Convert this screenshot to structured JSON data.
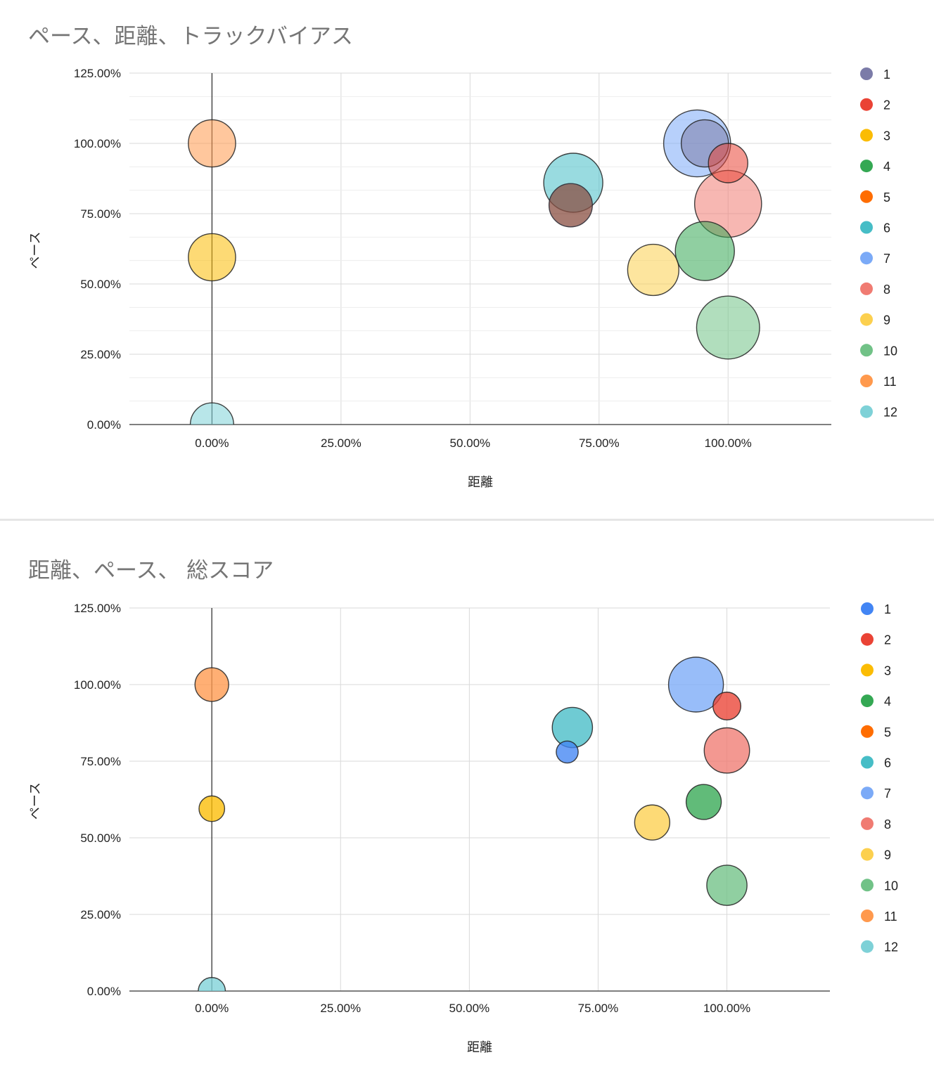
{
  "chart_data": [
    {
      "type": "bubble",
      "title": "ペース、距離、トラックバイアス",
      "xlabel": "距離",
      "ylabel": "ペース",
      "xlim": [
        -0.16,
        1.2
      ],
      "ylim": [
        0,
        1.25
      ],
      "x_ticks": [
        "0.00%",
        "25.00%",
        "50.00%",
        "75.00%",
        "100.00%"
      ],
      "y_ticks": [
        "0.00%",
        "25.00%",
        "50.00%",
        "75.00%",
        "100.00%",
        "125.00%"
      ],
      "grid": true,
      "minor_grid": true,
      "legend_position": "right",
      "bubble_opacity": 0.55,
      "series": [
        {
          "name": "1",
          "color": "#7b7ba8",
          "x": 0.955,
          "y": 1.0,
          "size": 0.6
        },
        {
          "name": "2",
          "color": "#ea4335",
          "x": 1.0,
          "y": 0.93,
          "size": 0.5
        },
        {
          "name": "3",
          "color": "#fbbc04",
          "x": 0.0,
          "y": 0.595,
          "size": 0.6
        },
        {
          "name": "4",
          "color": "#34a853",
          "x": 0.955,
          "y": 0.617,
          "size": 0.75
        },
        {
          "name": "5",
          "color": "#ff6d01",
          "x": 0.695,
          "y": 0.78,
          "size": 0.55
        },
        {
          "name": "6",
          "color": "#46bdc6",
          "x": 0.7,
          "y": 0.86,
          "size": 0.75
        },
        {
          "name": "7",
          "color": "#7baaf7",
          "x": 0.94,
          "y": 1.0,
          "size": 0.85
        },
        {
          "name": "8",
          "color": "#f07b72",
          "x": 1.0,
          "y": 0.785,
          "size": 0.85
        },
        {
          "name": "9",
          "color": "#fcd04f",
          "x": 0.855,
          "y": 0.55,
          "size": 0.65
        },
        {
          "name": "10",
          "color": "#71c287",
          "x": 1.0,
          "y": 0.345,
          "size": 0.8
        },
        {
          "name": "11",
          "color": "#ff994d",
          "x": 0.0,
          "y": 1.0,
          "size": 0.6
        },
        {
          "name": "12",
          "color": "#7ed1d7",
          "x": 0.0,
          "y": 0.0,
          "size": 0.55
        }
      ],
      "dark_overlay": {
        "x": 0.695,
        "y": 0.78,
        "color": "#3b3b6e"
      }
    },
    {
      "type": "bubble",
      "title": "距離、ペース、 総スコア",
      "xlabel": "距離",
      "ylabel": "ペース",
      "xlim": [
        -0.16,
        1.2
      ],
      "ylim": [
        0,
        1.25
      ],
      "x_ticks": [
        "0.00%",
        "25.00%",
        "50.00%",
        "75.00%",
        "100.00%"
      ],
      "y_ticks": [
        "0.00%",
        "25.00%",
        "50.00%",
        "75.00%",
        "100.00%",
        "125.00%"
      ],
      "grid": true,
      "minor_grid": false,
      "legend_position": "right",
      "bubble_opacity": 0.78,
      "series": [
        {
          "name": "1",
          "color": "#4285f4",
          "x": 0.69,
          "y": 0.78,
          "size": 0.3
        },
        {
          "name": "2",
          "color": "#ea4335",
          "x": 1.0,
          "y": 0.93,
          "size": 0.38
        },
        {
          "name": "3",
          "color": "#fbbc04",
          "x": 0.0,
          "y": 0.595,
          "size": 0.35
        },
        {
          "name": "4",
          "color": "#34a853",
          "x": 0.955,
          "y": 0.617,
          "size": 0.48
        },
        {
          "name": "5",
          "color": "#ff6d01",
          "x": 0.69,
          "y": 0.78,
          "size": 0.0
        },
        {
          "name": "6",
          "color": "#46bdc6",
          "x": 0.7,
          "y": 0.86,
          "size": 0.55
        },
        {
          "name": "7",
          "color": "#7baaf7",
          "x": 0.94,
          "y": 1.0,
          "size": 0.75
        },
        {
          "name": "8",
          "color": "#f07b72",
          "x": 1.0,
          "y": 0.785,
          "size": 0.62
        },
        {
          "name": "9",
          "color": "#fcd04f",
          "x": 0.855,
          "y": 0.55,
          "size": 0.48
        },
        {
          "name": "10",
          "color": "#71c287",
          "x": 1.0,
          "y": 0.345,
          "size": 0.55
        },
        {
          "name": "11",
          "color": "#ff994d",
          "x": 0.0,
          "y": 1.0,
          "size": 0.46
        },
        {
          "name": "12",
          "color": "#7ed1d7",
          "x": 0.0,
          "y": 0.0,
          "size": 0.37
        }
      ]
    }
  ]
}
